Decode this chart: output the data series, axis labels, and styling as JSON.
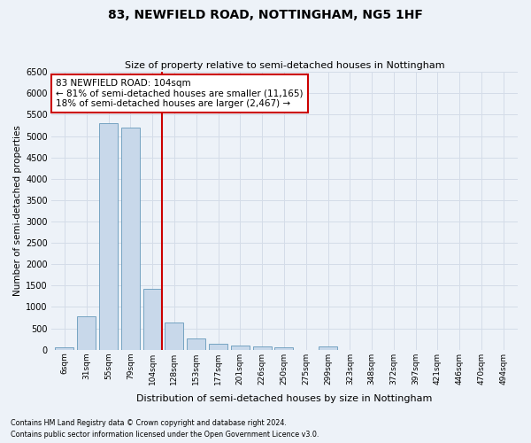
{
  "title": "83, NEWFIELD ROAD, NOTTINGHAM, NG5 1HF",
  "subtitle": "Size of property relative to semi-detached houses in Nottingham",
  "xlabel": "Distribution of semi-detached houses by size in Nottingham",
  "ylabel": "Number of semi-detached properties",
  "footer_line1": "Contains HM Land Registry data © Crown copyright and database right 2024.",
  "footer_line2": "Contains public sector information licensed under the Open Government Licence v3.0.",
  "annotation_line1": "83 NEWFIELD ROAD: 104sqm",
  "annotation_line2": "← 81% of semi-detached houses are smaller (11,165)",
  "annotation_line3": "18% of semi-detached houses are larger (2,467) →",
  "bar_color": "#c8d8ea",
  "bar_edge_color": "#6699bb",
  "highlight_line_color": "#cc0000",
  "annotation_box_color": "#ffffff",
  "annotation_box_edge_color": "#cc0000",
  "ylim": [
    0,
    6500
  ],
  "yticks": [
    0,
    500,
    1000,
    1500,
    2000,
    2500,
    3000,
    3500,
    4000,
    4500,
    5000,
    5500,
    6000,
    6500
  ],
  "bin_labels": [
    "6sqm",
    "31sqm",
    "55sqm",
    "79sqm",
    "104sqm",
    "128sqm",
    "153sqm",
    "177sqm",
    "201sqm",
    "226sqm",
    "250sqm",
    "275sqm",
    "299sqm",
    "323sqm",
    "348sqm",
    "372sqm",
    "397sqm",
    "421sqm",
    "446sqm",
    "470sqm",
    "494sqm"
  ],
  "bin_values": [
    50,
    790,
    5310,
    5200,
    1420,
    640,
    260,
    130,
    90,
    70,
    50,
    0,
    70,
    0,
    0,
    0,
    0,
    0,
    0,
    0,
    0
  ],
  "prop_bar_idx": 4,
  "grid_color": "#d4dce8",
  "background_color": "#edf2f8",
  "title_fontsize": 10,
  "subtitle_fontsize": 8,
  "ylabel_fontsize": 7.5,
  "xlabel_fontsize": 8,
  "ytick_fontsize": 7,
  "xtick_fontsize": 6.5
}
